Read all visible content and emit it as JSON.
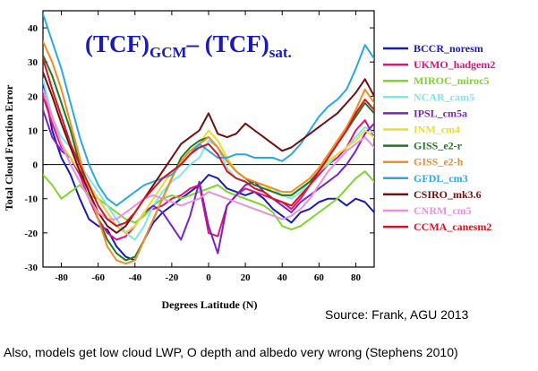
{
  "chart_data": {
    "type": "line",
    "title": {
      "main1": "(TCF)",
      "sub1": "GCM",
      "dash": "–",
      "main2": " (TCF)",
      "sub2": "sat."
    },
    "xlabel": "Degrees Latitude (N)",
    "ylabel": "Total Cloud Fraction Error",
    "xlim": [
      -90,
      90
    ],
    "ylim": [
      -30,
      45
    ],
    "xticks": [
      -80,
      -60,
      -40,
      -20,
      0,
      20,
      40,
      60,
      80
    ],
    "yticks": [
      -30,
      -20,
      -10,
      0,
      10,
      20,
      30,
      40
    ],
    "x": [
      -90,
      -85,
      -80,
      -75,
      -70,
      -65,
      -60,
      -55,
      -50,
      -45,
      -40,
      -35,
      -30,
      -25,
      -20,
      -15,
      -10,
      -5,
      0,
      5,
      10,
      15,
      20,
      25,
      30,
      35,
      40,
      45,
      50,
      55,
      60,
      65,
      70,
      75,
      80,
      85,
      90
    ],
    "series": [
      {
        "name": "BCCR_noresm",
        "color": "#1a1ab5",
        "values": [
          24,
          10,
          2,
          -3,
          -10,
          -16,
          -18,
          -19,
          -24,
          -27,
          -28,
          -22,
          -17,
          -14,
          -12,
          -10,
          -8,
          -6,
          -3,
          -4,
          -7,
          -8,
          -9,
          -8,
          -10,
          -13,
          -15,
          -17,
          -14,
          -13,
          -11,
          -10,
          -10,
          -12,
          -10,
          -11,
          -14
        ]
      },
      {
        "name": "UKMO_hadgem2",
        "color": "#e0147a",
        "values": [
          20,
          12,
          5,
          2,
          -3,
          -10,
          -16,
          -20,
          -22,
          -21,
          -18,
          -14,
          -13,
          -12,
          -10,
          -9,
          -7,
          -6,
          -20,
          -21,
          -12,
          -9,
          -7,
          -8,
          -9,
          -10,
          -11,
          -13,
          -10,
          -6,
          -3,
          0,
          2,
          5,
          10,
          13,
          8
        ]
      },
      {
        "name": "MIROC_miroc5",
        "color": "#7fd62a",
        "values": [
          -3,
          -6,
          -10,
          -8,
          -6,
          -9,
          -10,
          -12,
          -14,
          -16,
          -17,
          -15,
          -12,
          -10,
          -9,
          -10,
          -9,
          -8,
          -7,
          -6,
          -8,
          -9,
          -10,
          -11,
          -12,
          -14,
          -18,
          -19,
          -18,
          -16,
          -14,
          -12,
          -10,
          -7,
          -4,
          -2,
          -5
        ]
      },
      {
        "name": "NCAR_cam5",
        "color": "#7ee6e6",
        "values": [
          25,
          14,
          8,
          5,
          0,
          -4,
          -8,
          -12,
          -16,
          -20,
          -22,
          -18,
          -12,
          -8,
          -5,
          -3,
          0,
          2,
          7,
          5,
          -1,
          -4,
          -5,
          -6,
          -6,
          -7,
          -9,
          -10,
          -8,
          -5,
          -2,
          0,
          3,
          5,
          8,
          11,
          9
        ]
      },
      {
        "name": "IPSL_cm5a",
        "color": "#7b22c4",
        "values": [
          16,
          8,
          4,
          2,
          -2,
          -6,
          -10,
          -14,
          -18,
          -20,
          -18,
          -14,
          -12,
          -14,
          -18,
          -22,
          -15,
          -5,
          -18,
          -26,
          -12,
          -9,
          -6,
          -5,
          -8,
          -10,
          -12,
          -14,
          -11,
          -9,
          -7,
          -5,
          -3,
          0,
          4,
          9,
          12
        ]
      },
      {
        "name": "INM_cm4",
        "color": "#e8dd32",
        "values": [
          22,
          14,
          6,
          2,
          -2,
          -6,
          -10,
          -14,
          -18,
          -20,
          -18,
          -14,
          -10,
          -6,
          -2,
          0,
          3,
          6,
          10,
          7,
          2,
          -2,
          -4,
          -5,
          -6,
          -8,
          -9,
          -9,
          -7,
          -5,
          -2,
          1,
          3,
          5,
          7,
          10,
          8
        ]
      },
      {
        "name": "GISS_e2-r",
        "color": "#1f7a1f",
        "values": [
          32,
          26,
          18,
          10,
          0,
          -8,
          -16,
          -22,
          -26,
          -28,
          -27,
          -22,
          -16,
          -10,
          -4,
          2,
          5,
          7,
          8,
          5,
          1,
          -2,
          -4,
          -6,
          -7,
          -8,
          -9,
          -9,
          -7,
          -5,
          -2,
          2,
          6,
          10,
          14,
          18,
          15
        ]
      },
      {
        "name": "GISS_e2-h",
        "color": "#f28c28",
        "values": [
          36,
          30,
          22,
          12,
          2,
          -8,
          -16,
          -24,
          -28,
          -29,
          -28,
          -22,
          -16,
          -10,
          -4,
          1,
          4,
          6,
          8,
          5,
          1,
          -2,
          -4,
          -5,
          -6,
          -7,
          -8,
          -8,
          -6,
          -4,
          -1,
          3,
          7,
          11,
          16,
          22,
          18
        ]
      },
      {
        "name": "GFDL_cm3",
        "color": "#2aa8e0",
        "values": [
          44,
          36,
          28,
          18,
          8,
          0,
          -6,
          -10,
          -12,
          -10,
          -8,
          -6,
          -5,
          -4,
          -3,
          0,
          3,
          6,
          4,
          2,
          2,
          3,
          3,
          2,
          2,
          2,
          1,
          3,
          6,
          10,
          14,
          17,
          19,
          22,
          28,
          35,
          31
        ]
      },
      {
        "name": "CSIRO_mk3.6",
        "color": "#6e1010",
        "values": [
          27,
          20,
          12,
          5,
          -2,
          -8,
          -14,
          -18,
          -20,
          -18,
          -14,
          -10,
          -6,
          -2,
          2,
          6,
          8,
          10,
          15,
          9,
          8,
          9,
          12,
          10,
          8,
          6,
          4,
          5,
          7,
          9,
          11,
          13,
          15,
          18,
          21,
          25,
          20
        ]
      },
      {
        "name": "CNRM_cm5",
        "color": "#e890e0",
        "values": [
          22,
          14,
          6,
          0,
          -5,
          -10,
          -14,
          -16,
          -16,
          -14,
          -12,
          -10,
          -9,
          -10,
          -11,
          -12,
          -11,
          -10,
          -8,
          -9,
          -10,
          -11,
          -12,
          -13,
          -14,
          -15,
          -16,
          -15,
          -13,
          -10,
          -6,
          -2,
          1,
          4,
          6,
          8,
          5
        ]
      },
      {
        "name": "CCMA_canesm2",
        "color": "#d4141e",
        "values": [
          31,
          22,
          14,
          6,
          0,
          -6,
          -12,
          -16,
          -18,
          -17,
          -14,
          -10,
          -7,
          -4,
          -2,
          0,
          3,
          5,
          6,
          3,
          -2,
          -4,
          -5,
          -7,
          -8,
          -10,
          -11,
          -12,
          -9,
          -6,
          -2,
          2,
          6,
          10,
          15,
          19,
          16
        ]
      }
    ]
  },
  "source_note": "Source: Frank, AGU 2013",
  "caption": "Also, models get low cloud LWP, O depth and albedo very wrong (Stephens 2010)"
}
